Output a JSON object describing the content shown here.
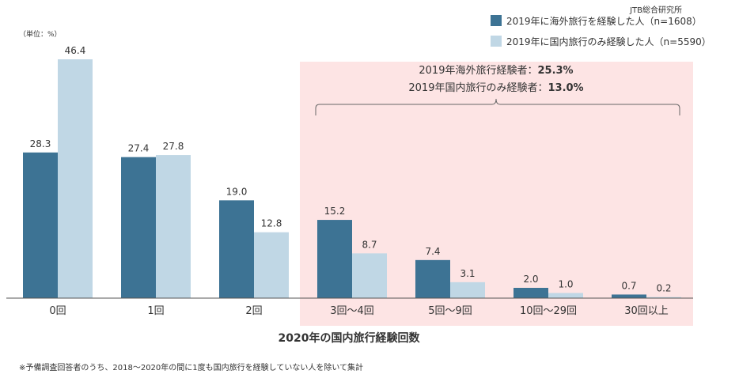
{
  "source": "JTB総合研究所",
  "unit": "（単位：%）",
  "footnote": "※予備調査回答者のうち、2018〜2020年の間に1度も国内旅行を経験していない人を除いて集計",
  "annotation": {
    "line1_label": "2019年海外旅行経験者：",
    "line1_value": "25.3%",
    "line2_label": "2019年国内旅行のみ経験者：",
    "line2_value": "13.0%"
  },
  "colors": {
    "series1": "#3d7394",
    "series2": "#c0d7e5",
    "highlight": "#fde4e4",
    "axis": "#555555"
  },
  "chart_data": {
    "type": "bar",
    "xlabel": "2020年の国内旅行経験回数",
    "ylabel": "",
    "ylim": [
      0,
      50
    ],
    "legend_position": "top-right",
    "grid": false,
    "categories": [
      "0回",
      "1回",
      "2回",
      "3回〜4回",
      "5回〜9回",
      "10回〜29回",
      "30回以上"
    ],
    "series": [
      {
        "name": "2019年に海外旅行を経験した人（n=1608）",
        "values": [
          28.3,
          27.4,
          19.0,
          15.2,
          7.4,
          2.0,
          0.7
        ]
      },
      {
        "name": "2019年に国内旅行のみ経験した人（n=5590）",
        "values": [
          46.4,
          27.8,
          12.8,
          8.7,
          3.1,
          1.0,
          0.2
        ]
      }
    ],
    "highlighted_categories": [
      "3回〜4回",
      "5回〜9回",
      "10回〜29回",
      "30回以上"
    ]
  }
}
